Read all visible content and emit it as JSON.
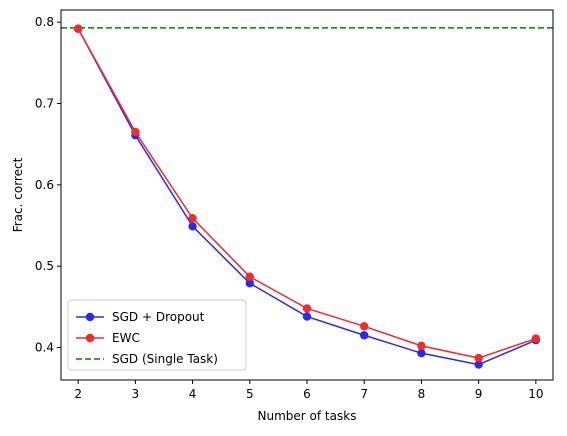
{
  "chart_data": {
    "type": "line",
    "title": "",
    "xlabel": "Number of tasks",
    "ylabel": "Frac. correct",
    "xlim": [
      1.7,
      10.3
    ],
    "ylim": [
      0.36,
      0.815
    ],
    "x": [
      2,
      3,
      4,
      5,
      6,
      7,
      8,
      9,
      10
    ],
    "xticks": [
      2,
      3,
      4,
      5,
      6,
      7,
      8,
      9,
      10
    ],
    "xtick_labels": [
      "2",
      "3",
      "4",
      "5",
      "6",
      "7",
      "8",
      "9",
      "10"
    ],
    "yticks": [
      0.4,
      0.5,
      0.6,
      0.7,
      0.8
    ],
    "ytick_labels": [
      "0.4",
      "0.5",
      "0.6",
      "0.7",
      "0.8"
    ],
    "grid": false,
    "legend_position": "lower-left",
    "series": [
      {
        "name": "SGD + Dropout",
        "color": "#2a2aef",
        "marker": "circle",
        "style": "solid",
        "values": [
          0.792,
          0.661,
          0.549,
          0.479,
          0.438,
          0.415,
          0.393,
          0.379,
          0.409
        ]
      },
      {
        "name": "EWC",
        "color": "#f22a2a",
        "marker": "circle",
        "style": "solid",
        "values": [
          0.792,
          0.665,
          0.559,
          0.487,
          0.448,
          0.426,
          0.402,
          0.387,
          0.411
        ]
      }
    ],
    "reference_lines": [
      {
        "name": "SGD (Single Task)",
        "orientation": "horizontal",
        "value": 0.793,
        "color": "#008000",
        "style": "dashed"
      }
    ]
  }
}
